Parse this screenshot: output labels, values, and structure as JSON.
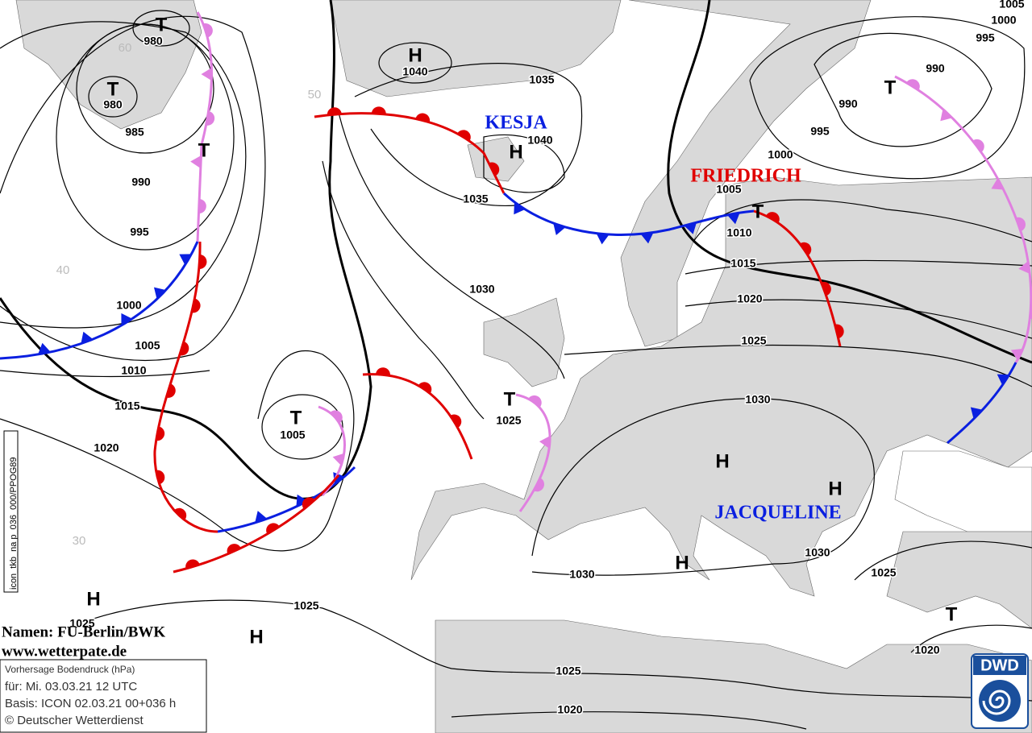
{
  "centers": [
    "T",
    "T",
    "T",
    "H",
    "H",
    "T",
    "T",
    "T",
    "T",
    "H",
    "H",
    "H",
    "T",
    "H",
    "H"
  ],
  "isobar_labels": [
    980,
    980,
    985,
    990,
    995,
    1000,
    1005,
    1010,
    1015,
    1020,
    1005,
    1025,
    1025,
    1040,
    1040,
    1035,
    1035,
    1030,
    990,
    990,
    995,
    1000,
    1005,
    1010,
    1015,
    1020,
    1025,
    1030,
    1025,
    1030,
    1025,
    1030,
    1020,
    1025,
    1020,
    1005,
    1000,
    995
  ],
  "storm_names": [
    "KESJA",
    "FRIEDRICH",
    "JACQUELINE"
  ],
  "latitude_labels": [
    60,
    50,
    40,
    30
  ],
  "credits": [
    "Namen: FU-Berlin/BWK",
    "www.wetterpate.de"
  ],
  "info_box": [
    "Vorhersage Bodendruck (hPa)",
    "für:  Mi. 03.03.21  12 UTC",
    "Basis: ICON  02.03.21 00+036 h",
    "© Deutscher Wetterdienst"
  ],
  "side_label": "icon_tkb_na p_036_000/PPOG89",
  "logo": "DWD"
}
